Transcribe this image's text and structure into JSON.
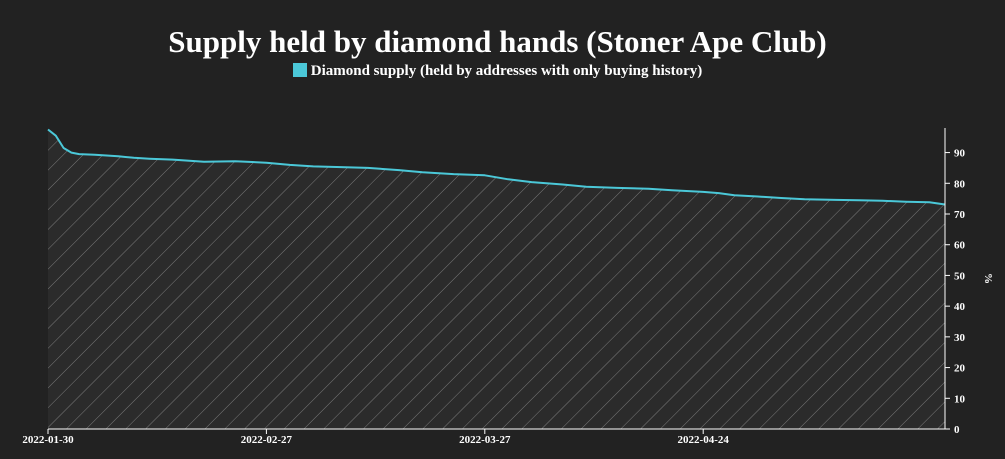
{
  "chart_data": {
    "type": "line",
    "title": "Supply held by diamond hands (Stoner Ape Club)",
    "series": [
      {
        "name": "Diamond supply (held by addresses with only buying history)",
        "color": "#4bc8d8",
        "x": [
          "2022-01-30",
          "2022-01-31",
          "2022-02-01",
          "2022-02-02",
          "2022-02-03",
          "2022-02-05",
          "2022-02-08",
          "2022-02-10",
          "2022-02-12",
          "2022-02-15",
          "2022-02-19",
          "2022-02-23",
          "2022-02-27",
          "2022-03-02",
          "2022-03-05",
          "2022-03-08",
          "2022-03-12",
          "2022-03-16",
          "2022-03-19",
          "2022-03-23",
          "2022-03-27",
          "2022-03-30",
          "2022-04-02",
          "2022-04-06",
          "2022-04-09",
          "2022-04-13",
          "2022-04-17",
          "2022-04-20",
          "2022-04-24",
          "2022-04-26",
          "2022-04-28",
          "2022-05-01",
          "2022-05-04",
          "2022-05-07",
          "2022-05-11",
          "2022-05-14",
          "2022-05-17",
          "2022-05-20",
          "2022-05-23",
          "2022-05-25"
        ],
        "values": [
          97.5,
          95.5,
          91.5,
          90,
          89.5,
          89.3,
          88.8,
          88.3,
          88,
          87.7,
          87,
          87.2,
          86.7,
          86,
          85.5,
          85.3,
          85,
          84.3,
          83.6,
          83,
          82.6,
          81.3,
          80.4,
          79.6,
          78.9,
          78.5,
          78.2,
          77.7,
          77.2,
          76.8,
          76.1,
          75.7,
          75.2,
          74.8,
          74.6,
          74.5,
          74.3,
          74,
          73.8,
          73.1
        ]
      }
    ],
    "x_ticks": [
      "2022-01-30",
      "2022-02-27",
      "2022-03-27",
      "2022-04-24"
    ],
    "x_range": [
      "2022-01-30",
      "2022-05-25"
    ],
    "ylabel": "%",
    "ylim": [
      0,
      98
    ],
    "y_ticks": [
      0,
      10,
      20,
      30,
      40,
      50,
      60,
      70,
      80,
      90
    ],
    "y_axis_side": "right",
    "area_fill": "hatched",
    "grid": false,
    "legend_position": "top-center"
  }
}
